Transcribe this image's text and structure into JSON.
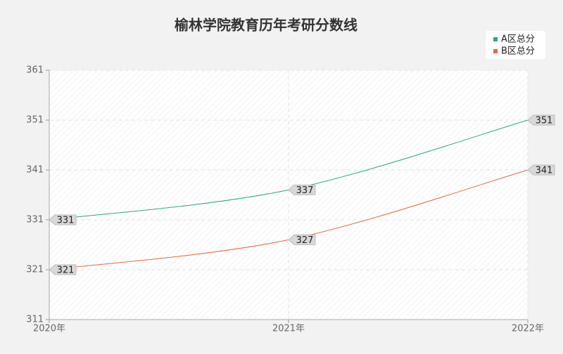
{
  "chart_data": {
    "type": "line",
    "title": "榆林学院教育历年考研分数线",
    "categories": [
      "2020年",
      "2021年",
      "2022年"
    ],
    "series": [
      {
        "name": "A区总分",
        "color": "#2aa784",
        "values": [
          331,
          337,
          351
        ]
      },
      {
        "name": "B区总分",
        "color": "#e06a3b",
        "values": [
          321,
          327,
          341
        ]
      }
    ],
    "ylim": [
      311,
      361
    ],
    "yticks": [
      311,
      321,
      331,
      341,
      351,
      361
    ],
    "grid": true,
    "legend": "top-right"
  }
}
